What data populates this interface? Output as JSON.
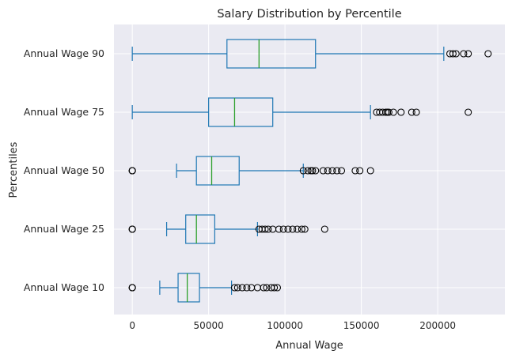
{
  "chart_data": {
    "type": "box",
    "orientation": "horizontal",
    "title": "Salary Distribution by Percentile",
    "xlabel": "Annual Wage",
    "ylabel": "Percentiles",
    "xlim": [
      -12000,
      244000
    ],
    "xticks": [
      0,
      50000,
      100000,
      150000,
      200000
    ],
    "xtick_labels": [
      "0",
      "50000",
      "100000",
      "150000",
      "200000"
    ],
    "grid": true,
    "colors": {
      "background": "#EAEAF2",
      "grid": "#FFFFFF",
      "box": "#1F77B4",
      "median": "#2CA02C",
      "flier": "#000000"
    },
    "series": [
      {
        "name": "Annual Wage 10",
        "whisker_low": 18000,
        "q1": 30000,
        "median": 36000,
        "q3": 44000,
        "whisker_high": 65000,
        "fliers": [
          0,
          0,
          0,
          67000,
          69000,
          72000,
          75000,
          78000,
          82000,
          86000,
          88000,
          91000,
          93000,
          95000
        ]
      },
      {
        "name": "Annual Wage 25",
        "whisker_low": 22500,
        "q1": 35000,
        "median": 42000,
        "q3": 54000,
        "whisker_high": 82000,
        "fliers": [
          0,
          0,
          0,
          83000,
          85000,
          87000,
          89000,
          92000,
          96000,
          99000,
          102000,
          105000,
          108000,
          111000,
          113000,
          126000
        ]
      },
      {
        "name": "Annual Wage 50",
        "whisker_low": 29000,
        "q1": 42000,
        "median": 52000,
        "q3": 70000,
        "whisker_high": 112000,
        "fliers": [
          0,
          0,
          0,
          112000,
          115000,
          117000,
          118000,
          120000,
          125000,
          128000,
          131000,
          134000,
          137000,
          146000,
          149000,
          156000
        ]
      },
      {
        "name": "Annual Wage 75",
        "whisker_low": 0,
        "q1": 50000,
        "median": 67000,
        "q3": 92000,
        "whisker_high": 156000,
        "fliers": [
          160000,
          162000,
          164000,
          166000,
          167000,
          168000,
          171000,
          176000,
          183000,
          186000,
          220000
        ]
      },
      {
        "name": "Annual Wage 90",
        "whisker_low": 0,
        "q1": 62000,
        "median": 83000,
        "q3": 120000,
        "whisker_high": 204000,
        "fliers": [
          208000,
          210000,
          212000,
          217000,
          220000,
          233000
        ]
      }
    ]
  }
}
